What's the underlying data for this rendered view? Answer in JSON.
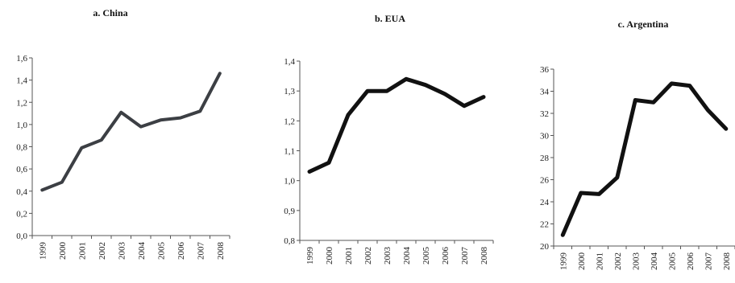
{
  "chart_data": [
    {
      "type": "line",
      "title": "a. China",
      "categories": [
        "1999",
        "2000",
        "2001",
        "2002",
        "2003",
        "2004",
        "2005",
        "2006",
        "2007",
        "2008"
      ],
      "series": [
        {
          "values": [
            0.41,
            0.48,
            0.79,
            0.86,
            1.11,
            0.98,
            1.04,
            1.06,
            1.12,
            1.46
          ]
        }
      ],
      "ylim": [
        0,
        1.6
      ],
      "yticks": [
        "0,0",
        "0,2",
        "0,4",
        "0,6",
        "0,8",
        "1,0",
        "1,2",
        "1,4",
        "1,6"
      ],
      "xlabel": "",
      "ylabel": "",
      "grid": false,
      "color": "#3c3f44"
    },
    {
      "type": "line",
      "title": "b. EUA",
      "categories": [
        "1999",
        "2000",
        "2001",
        "2002",
        "2003",
        "2004",
        "2005",
        "2006",
        "2007",
        "2008"
      ],
      "series": [
        {
          "values": [
            1.03,
            1.06,
            1.22,
            1.3,
            1.3,
            1.34,
            1.32,
            1.29,
            1.25,
            1.28
          ]
        }
      ],
      "ylim": [
        0.8,
        1.4
      ],
      "yticks": [
        "0,8",
        "0,9",
        "1,0",
        "1,1",
        "1,2",
        "1,3",
        "1,4"
      ],
      "xlabel": "",
      "ylabel": "",
      "grid": false,
      "color": "#111111"
    },
    {
      "type": "line",
      "title": "c. Argentina",
      "categories": [
        "1999",
        "2000",
        "2001",
        "2002",
        "2003",
        "2004",
        "2005",
        "2006",
        "2007",
        "2008"
      ],
      "series": [
        {
          "values": [
            21.0,
            24.8,
            24.7,
            26.2,
            33.2,
            33.0,
            34.7,
            34.5,
            32.3,
            30.6
          ]
        }
      ],
      "ylim": [
        20,
        36
      ],
      "yticks": [
        "20",
        "22",
        "24",
        "26",
        "28",
        "30",
        "32",
        "34",
        "36"
      ],
      "xlabel": "",
      "ylabel": "",
      "grid": false,
      "color": "#111111"
    }
  ]
}
